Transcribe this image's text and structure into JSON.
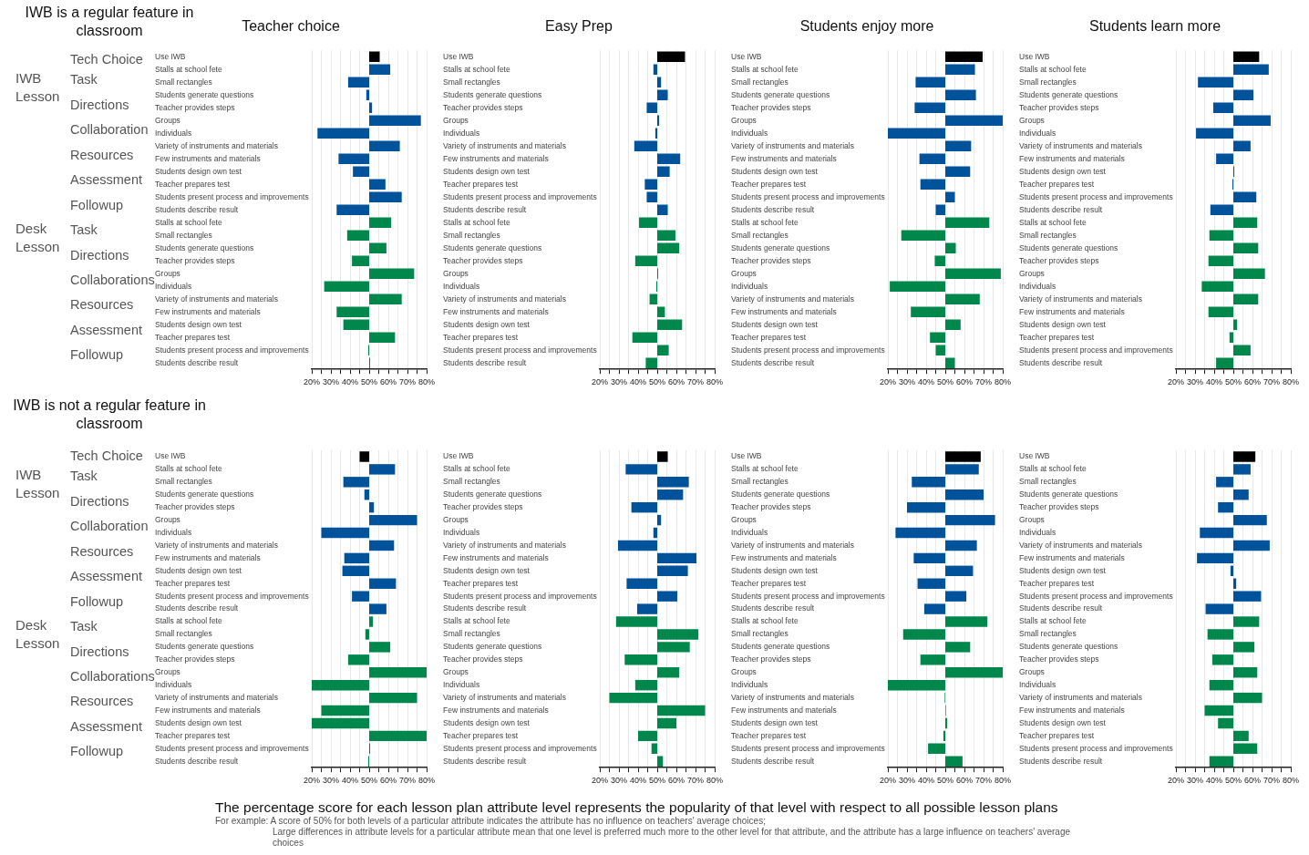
{
  "chart_data": [
    {
      "type": "bar",
      "orientation": "horizontal",
      "title": "Teacher choice",
      "subtitle": "IWB is a regular feature in classroom",
      "annotations": [
        "Tech Choice",
        "IWB Lesson",
        "Task",
        "Directions",
        "Collaboration",
        "Resources",
        "Assessment",
        "Followup",
        "Desk Lesson",
        "Task",
        "Directions",
        "Collaborations",
        "Resources",
        "Assessment",
        "Followup"
      ],
      "categories": [
        "Use IWB",
        "Stalls at school fete",
        "Small rectangles",
        "Students generate questions",
        "Teacher provides steps",
        "Groups",
        "Individuals",
        "Variety of instruments and materials",
        "Few instruments and materials",
        "Students design own test",
        "Teacher prepares test",
        "Students present process and improvements",
        "Students describe result",
        "Stalls at school fete",
        "Small rectangles",
        "Students generate questions",
        "Teacher provides steps",
        "Groups",
        "Individuals",
        "Variety of instruments and materials",
        "Few instruments and materials",
        "Students design own test",
        "Teacher prepares test",
        "Students present process and improvements",
        "Students describe result"
      ],
      "base": [
        50,
        50,
        50,
        50,
        50,
        50,
        50,
        50,
        50,
        50,
        50,
        50,
        50,
        50,
        50,
        50,
        50,
        50,
        50,
        50,
        50,
        50,
        50,
        50,
        50
      ],
      "values": [
        5.5,
        11,
        -11,
        -1.5,
        1.5,
        27,
        -27,
        16,
        -16,
        -8.5,
        8.5,
        17,
        -17,
        11.5,
        -11.5,
        9,
        -9,
        23.5,
        -23.5,
        17,
        -17,
        -13.5,
        13.5,
        -0.5,
        0.5
      ],
      "colors": [
        "#000000",
        "#00539b",
        "#00539b",
        "#00539b",
        "#00539b",
        "#00539b",
        "#00539b",
        "#00539b",
        "#00539b",
        "#00539b",
        "#00539b",
        "#00539b",
        "#00539b",
        "#00874b",
        "#00874b",
        "#00874b",
        "#00874b",
        "#00874b",
        "#00874b",
        "#00874b",
        "#00874b",
        "#00874b",
        "#00874b",
        "#00874b",
        "#00874b"
      ],
      "xlim": [
        20,
        80
      ],
      "xticks": [
        {
          "value": 20,
          "label": "20%"
        },
        {
          "value": 25,
          "label": null
        },
        {
          "value": 30,
          "label": "30%"
        },
        {
          "value": 35,
          "label": null
        },
        {
          "value": 40,
          "label": "40%"
        },
        {
          "value": 45,
          "label": null
        },
        {
          "value": 50,
          "label": "50%"
        },
        {
          "value": 55,
          "label": null
        },
        {
          "value": 60,
          "label": "60%"
        },
        {
          "value": 65,
          "label": null
        },
        {
          "value": 70,
          "label": "70%"
        },
        {
          "value": 75,
          "label": null
        },
        {
          "value": 80,
          "label": "80%"
        }
      ],
      "grid": "x"
    },
    {
      "type": "bar",
      "orientation": "horizontal",
      "title": "Easy Prep",
      "categories": [
        "Use IWB",
        "Stalls at school fete",
        "Small rectangles",
        "Students generate questions",
        "Teacher provides steps",
        "Groups",
        "Individuals",
        "Variety of instruments and materials",
        "Few instruments and materials",
        "Students design own test",
        "Teacher prepares test",
        "Students present process and improvements",
        "Students describe result",
        "Stalls at school fete",
        "Small rectangles",
        "Students generate questions",
        "Teacher provides steps",
        "Groups",
        "Individuals",
        "Variety of instruments and materials",
        "Few instruments and materials",
        "Students design own test",
        "Teacher prepares test",
        "Students present process and improvements",
        "Students describe result"
      ],
      "base": [
        50,
        50,
        50,
        50,
        50,
        50,
        50,
        50,
        50,
        50,
        50,
        50,
        50,
        50,
        50,
        50,
        50,
        50,
        50,
        50,
        50,
        50,
        50,
        50,
        50
      ],
      "values": [
        14.5,
        -2,
        2,
        5.5,
        -5.5,
        1,
        -1,
        -12,
        12,
        6.5,
        -6.5,
        -5.5,
        5.5,
        -9.5,
        9.5,
        11.5,
        -11.5,
        0.5,
        -0.5,
        -4,
        4,
        13,
        -13,
        6,
        -6
      ],
      "colors": [
        "#000000",
        "#00539b",
        "#00539b",
        "#00539b",
        "#00539b",
        "#00539b",
        "#00539b",
        "#00539b",
        "#00539b",
        "#00539b",
        "#00539b",
        "#00539b",
        "#00539b",
        "#00874b",
        "#00874b",
        "#00874b",
        "#00874b",
        "#00874b",
        "#00874b",
        "#00874b",
        "#00874b",
        "#00874b",
        "#00874b",
        "#00874b",
        "#00874b"
      ],
      "xlim": [
        20,
        80
      ],
      "xticks": [
        {
          "value": 20,
          "label": "20%"
        },
        {
          "value": 25,
          "label": null
        },
        {
          "value": 30,
          "label": "30%"
        },
        {
          "value": 35,
          "label": null
        },
        {
          "value": 40,
          "label": "40%"
        },
        {
          "value": 45,
          "label": null
        },
        {
          "value": 50,
          "label": "50%"
        },
        {
          "value": 55,
          "label": null
        },
        {
          "value": 60,
          "label": "60%"
        },
        {
          "value": 65,
          "label": null
        },
        {
          "value": 70,
          "label": "70%"
        },
        {
          "value": 75,
          "label": null
        },
        {
          "value": 80,
          "label": "80%"
        }
      ],
      "grid": "x"
    },
    {
      "type": "bar",
      "orientation": "horizontal",
      "title": "Students enjoy more",
      "categories": [
        "Use IWB",
        "Stalls at school fete",
        "Small rectangles",
        "Students generate questions",
        "Teacher provides steps",
        "Groups",
        "Individuals",
        "Variety of instruments and materials",
        "Few instruments and materials",
        "Students design own test",
        "Teacher prepares test",
        "Students present process and improvements",
        "Students describe result",
        "Stalls at school fete",
        "Small rectangles",
        "Students generate questions",
        "Teacher provides steps",
        "Groups",
        "Individuals",
        "Variety of instruments and materials",
        "Few instruments and materials",
        "Students design own test",
        "Teacher prepares test",
        "Students present process and improvements",
        "Students describe result"
      ],
      "base": [
        50,
        50,
        50,
        50,
        50,
        50,
        50,
        50,
        50,
        50,
        50,
        50,
        50,
        50,
        50,
        50,
        50,
        50,
        50,
        50,
        50,
        50,
        50,
        50,
        50
      ],
      "values": [
        19.5,
        15.5,
        -15.5,
        16,
        -16,
        30,
        -30,
        13.5,
        -13.5,
        13,
        -13,
        5,
        -5,
        23,
        -23,
        5.5,
        -5.5,
        29,
        -29,
        18,
        -18,
        8,
        -8,
        -5,
        5
      ],
      "colors": [
        "#000000",
        "#00539b",
        "#00539b",
        "#00539b",
        "#00539b",
        "#00539b",
        "#00539b",
        "#00539b",
        "#00539b",
        "#00539b",
        "#00539b",
        "#00539b",
        "#00539b",
        "#00874b",
        "#00874b",
        "#00874b",
        "#00874b",
        "#00874b",
        "#00874b",
        "#00874b",
        "#00874b",
        "#00874b",
        "#00874b",
        "#00874b",
        "#00874b"
      ],
      "xlim": [
        20,
        80
      ],
      "xticks": [
        {
          "value": 20,
          "label": "20%"
        },
        {
          "value": 25,
          "label": null
        },
        {
          "value": 30,
          "label": "30%"
        },
        {
          "value": 35,
          "label": null
        },
        {
          "value": 40,
          "label": "40%"
        },
        {
          "value": 45,
          "label": null
        },
        {
          "value": 50,
          "label": "50%"
        },
        {
          "value": 55,
          "label": null
        },
        {
          "value": 60,
          "label": "60%"
        },
        {
          "value": 65,
          "label": null
        },
        {
          "value": 70,
          "label": "70%"
        },
        {
          "value": 75,
          "label": null
        },
        {
          "value": 80,
          "label": "80%"
        }
      ],
      "grid": "x"
    },
    {
      "type": "bar",
      "orientation": "horizontal",
      "title": "Students learn more",
      "categories": [
        "Use IWB",
        "Stalls at school fete",
        "Small rectangles",
        "Students generate questions",
        "Teacher provides steps",
        "Groups",
        "Individuals",
        "Variety of instruments and materials",
        "Few instruments and materials",
        "Students design own test",
        "Teacher prepares test",
        "Students present process and improvements",
        "Students describe result",
        "Stalls at school fete",
        "Small rectangles",
        "Students generate questions",
        "Teacher provides steps",
        "Groups",
        "Individuals",
        "Variety of instruments and materials",
        "Few instruments and materials",
        "Students design own test",
        "Teacher prepares test",
        "Students present process and improvements",
        "Students describe result"
      ],
      "base": [
        50,
        50,
        50,
        50,
        50,
        50,
        50,
        50,
        50,
        50,
        50,
        50,
        50,
        50,
        50,
        50,
        50,
        50,
        50,
        50,
        50,
        50,
        50,
        50,
        50
      ],
      "values": [
        13.5,
        18.5,
        -18.5,
        10.5,
        -10.5,
        19.5,
        -19.5,
        9,
        -9,
        0.5,
        -0.5,
        12,
        -12,
        12.5,
        -12.5,
        13,
        -13,
        16.5,
        -16.5,
        13,
        -13,
        2,
        -2,
        9,
        -9
      ],
      "colors": [
        "#000000",
        "#00539b",
        "#00539b",
        "#00539b",
        "#00539b",
        "#00539b",
        "#00539b",
        "#00539b",
        "#00539b",
        "#00539b",
        "#00539b",
        "#00539b",
        "#00539b",
        "#00874b",
        "#00874b",
        "#00874b",
        "#00874b",
        "#00874b",
        "#00874b",
        "#00874b",
        "#00874b",
        "#00874b",
        "#00874b",
        "#00874b",
        "#00874b"
      ],
      "xlim": [
        20,
        80
      ],
      "xticks": [
        {
          "value": 20,
          "label": "20%"
        },
        {
          "value": 25,
          "label": null
        },
        {
          "value": 30,
          "label": "30%"
        },
        {
          "value": 35,
          "label": null
        },
        {
          "value": 40,
          "label": "40%"
        },
        {
          "value": 45,
          "label": null
        },
        {
          "value": 50,
          "label": "50%"
        },
        {
          "value": 55,
          "label": null
        },
        {
          "value": 60,
          "label": "60%"
        },
        {
          "value": 65,
          "label": null
        },
        {
          "value": 70,
          "label": "70%"
        },
        {
          "value": 75,
          "label": null
        },
        {
          "value": 80,
          "label": "80%"
        }
      ],
      "grid": "x"
    },
    {
      "type": "bar",
      "orientation": "horizontal",
      "subtitle": "IWB is not a regular feature in classroom",
      "annotations": [
        "Tech Choice",
        "IWB Lesson",
        "Task",
        "Directions",
        "Collaboration",
        "Resources",
        "Assessment",
        "Followup",
        "Desk Lesson",
        "Task",
        "Directions",
        "Collaborations",
        "Resources",
        "Assessment",
        "Followup"
      ],
      "categories": [
        "Use IWB",
        "Stalls at school fete",
        "Small rectangles",
        "Students generate questions",
        "Teacher provides steps",
        "Groups",
        "Individuals",
        "Variety of instruments and materials",
        "Few instruments and materials",
        "Students design own test",
        "Teacher prepares test",
        "Students present process and improvements",
        "Students describe result",
        "Stalls at school fete",
        "Small rectangles",
        "Students generate questions",
        "Teacher provides steps",
        "Groups",
        "Individuals",
        "Variety of instruments and materials",
        "Few instruments and materials",
        "Students design own test",
        "Teacher prepares test",
        "Students present process and improvements",
        "Students describe result"
      ],
      "base": [
        50,
        50,
        50,
        50,
        50,
        50,
        50,
        50,
        50,
        50,
        50,
        50,
        50,
        50,
        50,
        50,
        50,
        50,
        50,
        50,
        50,
        50,
        50,
        50,
        50
      ],
      "values": [
        -5,
        13.5,
        -13.5,
        -2.5,
        2.5,
        25,
        -25,
        13,
        -13,
        -14,
        14,
        -9,
        9,
        2,
        -2,
        11,
        -11,
        30,
        -30,
        25,
        -25,
        -30,
        30,
        0.5,
        -0.5
      ],
      "colors": [
        "#000000",
        "#00539b",
        "#00539b",
        "#00539b",
        "#00539b",
        "#00539b",
        "#00539b",
        "#00539b",
        "#00539b",
        "#00539b",
        "#00539b",
        "#00539b",
        "#00539b",
        "#00874b",
        "#00874b",
        "#00874b",
        "#00874b",
        "#00874b",
        "#00874b",
        "#00874b",
        "#00874b",
        "#00874b",
        "#00874b",
        "#00874b",
        "#00874b"
      ],
      "xlim": [
        20,
        80
      ],
      "xticks": [
        {
          "value": 20,
          "label": "20%"
        },
        {
          "value": 25,
          "label": null
        },
        {
          "value": 30,
          "label": "30%"
        },
        {
          "value": 35,
          "label": null
        },
        {
          "value": 40,
          "label": "40%"
        },
        {
          "value": 45,
          "label": null
        },
        {
          "value": 50,
          "label": "50%"
        },
        {
          "value": 55,
          "label": null
        },
        {
          "value": 60,
          "label": "60%"
        },
        {
          "value": 65,
          "label": null
        },
        {
          "value": 70,
          "label": "70%"
        },
        {
          "value": 75,
          "label": null
        },
        {
          "value": 80,
          "label": "80%"
        }
      ],
      "grid": "x"
    },
    {
      "type": "bar",
      "orientation": "horizontal",
      "categories": [
        "Use IWB",
        "Stalls at school fete",
        "Small rectangles",
        "Students generate questions",
        "Teacher provides steps",
        "Groups",
        "Individuals",
        "Variety of instruments and materials",
        "Few instruments and materials",
        "Students design own test",
        "Teacher prepares test",
        "Students present process and improvements",
        "Students describe result",
        "Stalls at school fete",
        "Small rectangles",
        "Students generate questions",
        "Teacher provides steps",
        "Groups",
        "Individuals",
        "Variety of instruments and materials",
        "Few instruments and materials",
        "Students design own test",
        "Teacher prepares test",
        "Students present process and improvements",
        "Students describe result"
      ],
      "base": [
        50,
        50,
        50,
        50,
        50,
        50,
        50,
        50,
        50,
        50,
        50,
        50,
        50,
        50,
        50,
        50,
        50,
        50,
        50,
        50,
        50,
        50,
        50,
        50,
        50
      ],
      "values": [
        5.5,
        -16.5,
        16.5,
        13.5,
        -13.5,
        2,
        -2,
        -20.5,
        20.5,
        16,
        -16,
        10.5,
        -10.5,
        -21.5,
        21.5,
        17,
        -17,
        11.5,
        -11.5,
        -25,
        25,
        10,
        -10,
        -3,
        3
      ],
      "colors": [
        "#000000",
        "#00539b",
        "#00539b",
        "#00539b",
        "#00539b",
        "#00539b",
        "#00539b",
        "#00539b",
        "#00539b",
        "#00539b",
        "#00539b",
        "#00539b",
        "#00539b",
        "#00874b",
        "#00874b",
        "#00874b",
        "#00874b",
        "#00874b",
        "#00874b",
        "#00874b",
        "#00874b",
        "#00874b",
        "#00874b",
        "#00874b",
        "#00874b"
      ],
      "xlim": [
        20,
        80
      ],
      "xticks": [
        {
          "value": 20,
          "label": "20%"
        },
        {
          "value": 25,
          "label": null
        },
        {
          "value": 30,
          "label": "30%"
        },
        {
          "value": 35,
          "label": null
        },
        {
          "value": 40,
          "label": "40%"
        },
        {
          "value": 45,
          "label": null
        },
        {
          "value": 50,
          "label": "50%"
        },
        {
          "value": 55,
          "label": null
        },
        {
          "value": 60,
          "label": "60%"
        },
        {
          "value": 65,
          "label": null
        },
        {
          "value": 70,
          "label": "70%"
        },
        {
          "value": 75,
          "label": null
        },
        {
          "value": 80,
          "label": "80%"
        }
      ],
      "grid": "x"
    },
    {
      "type": "bar",
      "orientation": "horizontal",
      "categories": [
        "Use IWB",
        "Stalls at school fete",
        "Small rectangles",
        "Students generate questions",
        "Teacher provides steps",
        "Groups",
        "Individuals",
        "Variety of instruments and materials",
        "Few instruments and materials",
        "Students design own test",
        "Teacher prepares test",
        "Students present process and improvements",
        "Students describe result",
        "Stalls at school fete",
        "Small rectangles",
        "Students generate questions",
        "Teacher provides steps",
        "Groups",
        "Individuals",
        "Variety of instruments and materials",
        "Few instruments and materials",
        "Students design own test",
        "Teacher prepares test",
        "Students present process and improvements",
        "Students describe result"
      ],
      "base": [
        50,
        50,
        50,
        50,
        50,
        50,
        50,
        50,
        50,
        50,
        50,
        50,
        50,
        50,
        50,
        50,
        50,
        50,
        50,
        50,
        50,
        50,
        50,
        50,
        50
      ],
      "values": [
        18.5,
        17.5,
        -17.5,
        20,
        -20,
        26,
        -26,
        16.5,
        -16.5,
        14.5,
        -14.5,
        11,
        -11,
        22,
        -22,
        13,
        -13,
        30,
        -30,
        -0.3,
        0.3,
        1,
        -1,
        -9,
        9
      ],
      "colors": [
        "#000000",
        "#00539b",
        "#00539b",
        "#00539b",
        "#00539b",
        "#00539b",
        "#00539b",
        "#00539b",
        "#00539b",
        "#00539b",
        "#00539b",
        "#00539b",
        "#00539b",
        "#00874b",
        "#00874b",
        "#00874b",
        "#00874b",
        "#00874b",
        "#00874b",
        "#00874b",
        "#00874b",
        "#00874b",
        "#00874b",
        "#00874b",
        "#00874b"
      ],
      "xlim": [
        20,
        80
      ],
      "xticks": [
        {
          "value": 20,
          "label": "20%"
        },
        {
          "value": 25,
          "label": null
        },
        {
          "value": 30,
          "label": "30%"
        },
        {
          "value": 35,
          "label": null
        },
        {
          "value": 40,
          "label": "40%"
        },
        {
          "value": 45,
          "label": null
        },
        {
          "value": 50,
          "label": "50%"
        },
        {
          "value": 55,
          "label": null
        },
        {
          "value": 60,
          "label": "60%"
        },
        {
          "value": 65,
          "label": null
        },
        {
          "value": 70,
          "label": "70%"
        },
        {
          "value": 75,
          "label": null
        },
        {
          "value": 80,
          "label": "80%"
        }
      ],
      "grid": "x"
    },
    {
      "type": "bar",
      "orientation": "horizontal",
      "categories": [
        "Use IWB",
        "Stalls at school fete",
        "Small rectangles",
        "Students generate questions",
        "Teacher provides steps",
        "Groups",
        "Individuals",
        "Variety of instruments and materials",
        "Few instruments and materials",
        "Students design own test",
        "Teacher prepares test",
        "Students present process and improvements",
        "Students describe result",
        "Stalls at school fete",
        "Small rectangles",
        "Students generate questions",
        "Teacher provides steps",
        "Groups",
        "Individuals",
        "Variety of instruments and materials",
        "Few instruments and materials",
        "Students design own test",
        "Teacher prepares test",
        "Students present process and improvements",
        "Students describe result"
      ],
      "base": [
        50,
        50,
        50,
        50,
        50,
        50,
        50,
        50,
        50,
        50,
        50,
        50,
        50,
        50,
        50,
        50,
        50,
        50,
        50,
        50,
        50,
        50,
        50,
        50,
        50
      ],
      "values": [
        11.5,
        9,
        -9,
        8,
        -8,
        17.5,
        -17.5,
        19,
        -19,
        -1.5,
        1.5,
        14.5,
        -14.5,
        13.5,
        -13.5,
        11,
        -11,
        12.5,
        -12.5,
        15,
        -15,
        -8,
        8,
        12.5,
        -12.5
      ],
      "colors": [
        "#000000",
        "#00539b",
        "#00539b",
        "#00539b",
        "#00539b",
        "#00539b",
        "#00539b",
        "#00539b",
        "#00539b",
        "#00539b",
        "#00539b",
        "#00539b",
        "#00539b",
        "#00874b",
        "#00874b",
        "#00874b",
        "#00874b",
        "#00874b",
        "#00874b",
        "#00874b",
        "#00874b",
        "#00874b",
        "#00874b",
        "#00874b",
        "#00874b"
      ],
      "xlim": [
        20,
        80
      ],
      "xticks": [
        {
          "value": 20,
          "label": "20%"
        },
        {
          "value": 25,
          "label": null
        },
        {
          "value": 30,
          "label": "30%"
        },
        {
          "value": 35,
          "label": null
        },
        {
          "value": 40,
          "label": "40%"
        },
        {
          "value": 45,
          "label": null
        },
        {
          "value": 50,
          "label": "50%"
        },
        {
          "value": 55,
          "label": null
        },
        {
          "value": 60,
          "label": "60%"
        },
        {
          "value": 65,
          "label": null
        },
        {
          "value": 70,
          "label": "70%"
        },
        {
          "value": 75,
          "label": null
        },
        {
          "value": 80,
          "label": "80%"
        }
      ],
      "grid": "x"
    },
    {
      "type": "other",
      "title": "The percentage score for each lesson plan attribute level represents the popularity of that level with respect to all possible lesson plans",
      "annotations": [
        "For example: A score of 50% for both levels of a particular attribute indicates the attribute has no influence on teachers' average choices;",
        "Large differences in attribute levels for a particular attribute mean that one level is preferred much more to the other level for that attribute, and the attribute has a large influence on teachers' average choices"
      ]
    }
  ]
}
